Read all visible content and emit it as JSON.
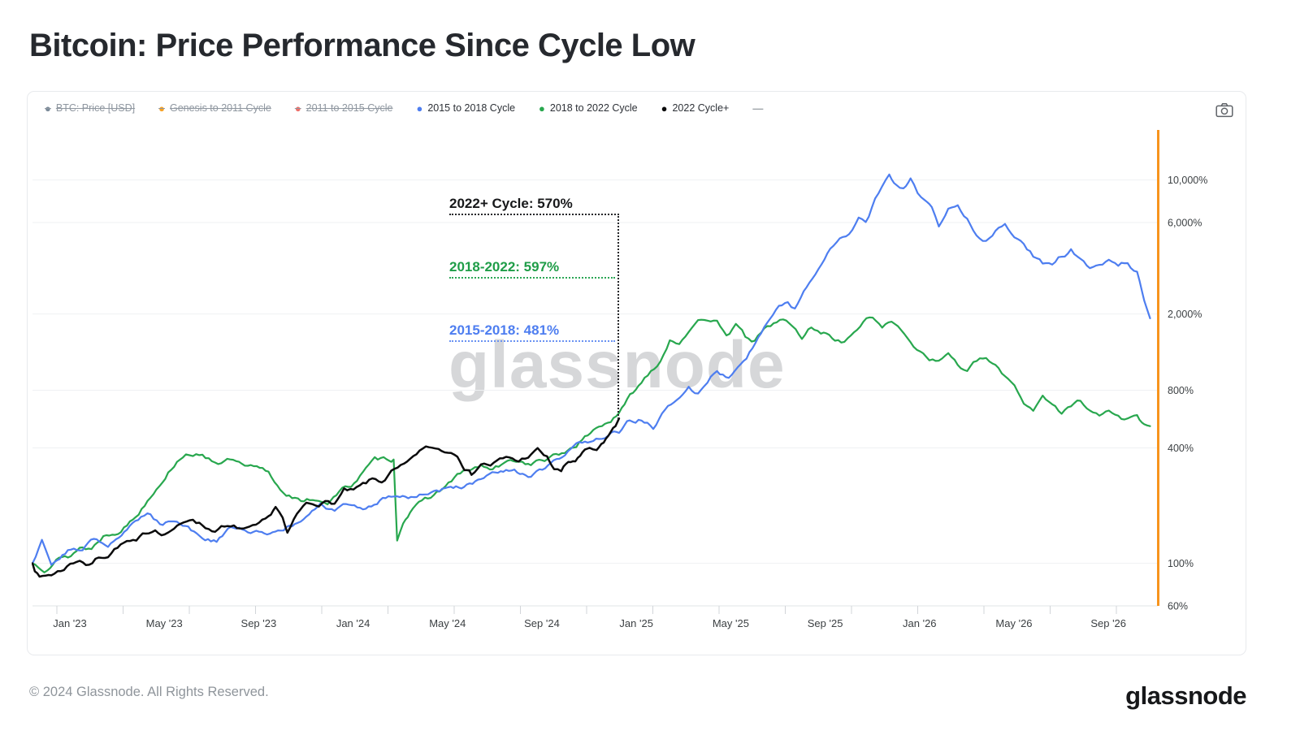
{
  "page": {
    "title": "Bitcoin: Price Performance Since Cycle Low"
  },
  "toolbar": {
    "camera_icon": "camera"
  },
  "legend": {
    "items": [
      {
        "label": "BTC: Price [USD]",
        "color": "#7b8b9a",
        "disabled": true
      },
      {
        "label": "Genesis to 2011 Cycle",
        "color": "#f7a225",
        "disabled": true
      },
      {
        "label": "2011 to 2015 Cycle",
        "color": "#ee6f6a",
        "disabled": true
      },
      {
        "label": "2015 to 2018 Cycle",
        "color": "#4e7ef0",
        "disabled": false
      },
      {
        "label": "2018 to 2022 Cycle",
        "color": "#28a74e",
        "disabled": false
      },
      {
        "label": "2022 Cycle+",
        "color": "#0b0b0c",
        "disabled": false
      },
      {
        "label": "—",
        "color": "#9aa0a6",
        "disabled": false,
        "dash": true
      }
    ]
  },
  "annotations": [
    {
      "label": "2022+ Cycle: 570%",
      "color": "#17181a",
      "value_pct": 570
    },
    {
      "label": "2018-2022: 597%",
      "color": "#1f9d48",
      "value_pct": 597
    },
    {
      "label": "2015-2018: 481%",
      "color": "#4e7ef0",
      "value_pct": 481
    }
  ],
  "watermark": "glassnode",
  "footer": {
    "copyright": "© 2024 Glassnode. All Rights Reserved.",
    "brand": "glassnode"
  },
  "chart_data": {
    "type": "line",
    "title": "Bitcoin: Price Performance Since Cycle Low",
    "x_axis": {
      "unit": "months since cycle low (calendar dates shown for 2022+ cycle)",
      "tick_labels": [
        "Jan '23",
        "May '23",
        "Sep '23",
        "Jan '24",
        "May '24",
        "Sep '24",
        "Jan '25",
        "May '25",
        "Sep '25",
        "Jan '26",
        "May '26",
        "Sep '26"
      ],
      "first_tick_month": 1.583,
      "tick_step_months": 4,
      "range_months": [
        0,
        47.5
      ]
    },
    "y_axis": {
      "scale": "log",
      "unit": "% price performance since cycle low",
      "side": "right",
      "tick_labels": [
        "10,000%",
        "6,000%",
        "2,000%",
        "800%",
        "400%",
        "100%",
        "60%"
      ],
      "tick_values": [
        10000,
        6000,
        2000,
        800,
        400,
        100,
        60
      ],
      "range": [
        55,
        13000
      ],
      "axis_line_color": "#f7941d"
    },
    "grid": "horizontal",
    "legend_position": "top-left",
    "marker_month_since_low": 24.85,
    "disabled_series": [
      "BTC: Price [USD]",
      "Genesis to 2011 Cycle",
      "2011 to 2015 Cycle"
    ],
    "series": [
      {
        "name": "2018 to 2022 Cycle",
        "color": "#28a74e",
        "width": 2.2,
        "seed": 13,
        "current_value_pct": 597,
        "points": [
          [
            0,
            100
          ],
          [
            0.5,
            95
          ],
          [
            1,
            110
          ],
          [
            1.5,
            108
          ],
          [
            2,
            122
          ],
          [
            2.5,
            120
          ],
          [
            3,
            140
          ],
          [
            3.5,
            148
          ],
          [
            4,
            162
          ],
          [
            4.5,
            185
          ],
          [
            5,
            230
          ],
          [
            5.5,
            280
          ],
          [
            6,
            335
          ],
          [
            6.5,
            390
          ],
          [
            6.8,
            360
          ],
          [
            7.2,
            372
          ],
          [
            7.6,
            350
          ],
          [
            8,
            342
          ],
          [
            8.5,
            346
          ],
          [
            9,
            312
          ],
          [
            9.5,
            306
          ],
          [
            10,
            292
          ],
          [
            10.5,
            242
          ],
          [
            11,
            226
          ],
          [
            11.5,
            206
          ],
          [
            12,
            216
          ],
          [
            12.5,
            210
          ],
          [
            13,
            236
          ],
          [
            13.5,
            256
          ],
          [
            14,
            300
          ],
          [
            14.5,
            340
          ],
          [
            15,
            346
          ],
          [
            15.3,
            352
          ],
          [
            15.45,
            135
          ],
          [
            15.7,
            168
          ],
          [
            16,
            192
          ],
          [
            16.5,
            206
          ],
          [
            17,
            226
          ],
          [
            17.5,
            252
          ],
          [
            18,
            286
          ],
          [
            18.5,
            302
          ],
          [
            19,
            318
          ],
          [
            19.5,
            306
          ],
          [
            20,
            326
          ],
          [
            20.5,
            342
          ],
          [
            21,
            330
          ],
          [
            21.7,
            346
          ],
          [
            22.3,
            362
          ],
          [
            22.8,
            396
          ],
          [
            23.4,
            452
          ],
          [
            24,
            522
          ],
          [
            24.5,
            562
          ],
          [
            24.85,
            597
          ],
          [
            25.2,
            700
          ],
          [
            25.8,
            880
          ],
          [
            26.2,
            1020
          ],
          [
            26.6,
            1160
          ],
          [
            27,
            1500
          ],
          [
            27.4,
            1440
          ],
          [
            27.8,
            1700
          ],
          [
            28.2,
            1820
          ],
          [
            28.6,
            1740
          ],
          [
            29,
            1860
          ],
          [
            29.4,
            1600
          ],
          [
            29.8,
            1760
          ],
          [
            30.2,
            1500
          ],
          [
            30.6,
            1440
          ],
          [
            31,
            1620
          ],
          [
            31.4,
            1760
          ],
          [
            31.8,
            1880
          ],
          [
            32.2,
            1700
          ],
          [
            32.6,
            1480
          ],
          [
            33,
            1700
          ],
          [
            33.4,
            1620
          ],
          [
            34,
            1500
          ],
          [
            34.4,
            1420
          ],
          [
            34.8,
            1620
          ],
          [
            35.2,
            1820
          ],
          [
            35.6,
            1920
          ],
          [
            36,
            1760
          ],
          [
            36.4,
            1820
          ],
          [
            36.8,
            1620
          ],
          [
            37.2,
            1460
          ],
          [
            37.6,
            1300
          ],
          [
            38,
            1210
          ],
          [
            38.4,
            1140
          ],
          [
            38.8,
            1260
          ],
          [
            39.2,
            1100
          ],
          [
            39.6,
            1000
          ],
          [
            40,
            1120
          ],
          [
            40.4,
            1160
          ],
          [
            40.8,
            1040
          ],
          [
            41.2,
            940
          ],
          [
            41.6,
            850
          ],
          [
            42,
            700
          ],
          [
            42.4,
            640
          ],
          [
            42.8,
            760
          ],
          [
            43.2,
            700
          ],
          [
            43.6,
            600
          ],
          [
            44,
            660
          ],
          [
            44.4,
            710
          ],
          [
            44.8,
            650
          ],
          [
            45.2,
            590
          ],
          [
            45.6,
            630
          ],
          [
            46,
            580
          ],
          [
            46.4,
            560
          ],
          [
            46.8,
            610
          ],
          [
            47.1,
            540
          ],
          [
            47.35,
            520
          ]
        ]
      },
      {
        "name": "2015 to 2018 Cycle",
        "color": "#4e7ef0",
        "width": 2.2,
        "seed": 29,
        "current_value_pct": 481,
        "points": [
          [
            0,
            100
          ],
          [
            0.4,
            138
          ],
          [
            0.8,
            102
          ],
          [
            1.5,
            122
          ],
          [
            2,
            115
          ],
          [
            2.6,
            132
          ],
          [
            3.2,
            128
          ],
          [
            4,
            155
          ],
          [
            4.6,
            172
          ],
          [
            5,
            180
          ],
          [
            5.4,
            162
          ],
          [
            6,
            172
          ],
          [
            6.6,
            158
          ],
          [
            7.2,
            136
          ],
          [
            7.8,
            130
          ],
          [
            8.4,
            152
          ],
          [
            9,
            148
          ],
          [
            9.6,
            143
          ],
          [
            10.4,
            150
          ],
          [
            11,
            158
          ],
          [
            11.6,
            172
          ],
          [
            12.2,
            196
          ],
          [
            12.8,
            188
          ],
          [
            13.4,
            200
          ],
          [
            14,
            194
          ],
          [
            14.6,
            208
          ],
          [
            15.2,
            228
          ],
          [
            15.8,
            222
          ],
          [
            16.4,
            230
          ],
          [
            17,
            240
          ],
          [
            17.6,
            246
          ],
          [
            18.4,
            256
          ],
          [
            19,
            268
          ],
          [
            19.6,
            290
          ],
          [
            20.3,
            296
          ],
          [
            21,
            286
          ],
          [
            21.6,
            302
          ],
          [
            22.2,
            336
          ],
          [
            22.8,
            380
          ],
          [
            23.4,
            430
          ],
          [
            24,
            452
          ],
          [
            24.4,
            468
          ],
          [
            24.85,
            481
          ],
          [
            25.3,
            545
          ],
          [
            25.8,
            565
          ],
          [
            26.3,
            515
          ],
          [
            26.8,
            625
          ],
          [
            27.3,
            700
          ],
          [
            27.8,
            810
          ],
          [
            28.2,
            760
          ],
          [
            28.6,
            890
          ],
          [
            29,
            1010
          ],
          [
            29.5,
            950
          ],
          [
            30,
            1160
          ],
          [
            30.5,
            1360
          ],
          [
            31,
            1700
          ],
          [
            31.5,
            2100
          ],
          [
            32,
            2400
          ],
          [
            32.3,
            2200
          ],
          [
            32.8,
            2750
          ],
          [
            33.3,
            3300
          ],
          [
            33.8,
            4200
          ],
          [
            34.2,
            4800
          ],
          [
            34.6,
            5300
          ],
          [
            35,
            6300
          ],
          [
            35.3,
            5800
          ],
          [
            35.7,
            7700
          ],
          [
            36,
            9200
          ],
          [
            36.3,
            10800
          ],
          [
            36.6,
            9600
          ],
          [
            36.9,
            9000
          ],
          [
            37.2,
            10000
          ],
          [
            37.5,
            8600
          ],
          [
            37.8,
            7800
          ],
          [
            38.1,
            7100
          ],
          [
            38.4,
            5800
          ],
          [
            38.8,
            7000
          ],
          [
            39.2,
            7400
          ],
          [
            39.6,
            6400
          ],
          [
            40,
            5400
          ],
          [
            40.4,
            5000
          ],
          [
            40.8,
            5600
          ],
          [
            41.2,
            6050
          ],
          [
            41.6,
            5300
          ],
          [
            42,
            4600
          ],
          [
            42.4,
            4000
          ],
          [
            42.8,
            3650
          ],
          [
            43.2,
            3450
          ],
          [
            43.6,
            3900
          ],
          [
            44,
            4250
          ],
          [
            44.4,
            3800
          ],
          [
            44.8,
            3400
          ],
          [
            45.2,
            3550
          ],
          [
            45.6,
            3700
          ],
          [
            46,
            3600
          ],
          [
            46.4,
            3700
          ],
          [
            46.8,
            3300
          ],
          [
            47.1,
            2250
          ],
          [
            47.35,
            1900
          ]
        ]
      },
      {
        "name": "2022 Cycle+",
        "color": "#0b0b0c",
        "width": 2.5,
        "seed": 7,
        "current_value_pct": 570,
        "points": [
          [
            0,
            100
          ],
          [
            0.3,
            85
          ],
          [
            0.8,
            88
          ],
          [
            1.2,
            92
          ],
          [
            1.6,
            100
          ],
          [
            2,
            106
          ],
          [
            2.4,
            98
          ],
          [
            2.8,
            108
          ],
          [
            3.2,
            112
          ],
          [
            3.6,
            124
          ],
          [
            4,
            130
          ],
          [
            4.4,
            127
          ],
          [
            4.8,
            140
          ],
          [
            5.2,
            150
          ],
          [
            5.6,
            145
          ],
          [
            6,
            155
          ],
          [
            6.4,
            160
          ],
          [
            6.8,
            172
          ],
          [
            7.2,
            160
          ],
          [
            7.6,
            150
          ],
          [
            8,
            156
          ],
          [
            8.4,
            152
          ],
          [
            8.8,
            150
          ],
          [
            9.2,
            148
          ],
          [
            9.6,
            153
          ],
          [
            10,
            165
          ],
          [
            10.3,
            195
          ],
          [
            10.6,
            170
          ],
          [
            10.8,
            138
          ],
          [
            11.2,
            175
          ],
          [
            11.6,
            200
          ],
          [
            12,
            205
          ],
          [
            12.4,
            210
          ],
          [
            12.8,
            206
          ],
          [
            13.2,
            238
          ],
          [
            13.6,
            234
          ],
          [
            14,
            250
          ],
          [
            14.4,
            268
          ],
          [
            14.8,
            264
          ],
          [
            15.2,
            298
          ],
          [
            15.6,
            310
          ],
          [
            16,
            330
          ],
          [
            16.4,
            378
          ],
          [
            16.8,
            395
          ],
          [
            17.2,
            390
          ],
          [
            17.6,
            384
          ],
          [
            18,
            378
          ],
          [
            18.3,
            330
          ],
          [
            18.6,
            298
          ],
          [
            19,
            338
          ],
          [
            19.4,
            330
          ],
          [
            19.8,
            345
          ],
          [
            20.2,
            350
          ],
          [
            20.6,
            338
          ],
          [
            21,
            362
          ],
          [
            21.4,
            388
          ],
          [
            21.8,
            352
          ],
          [
            22.1,
            310
          ],
          [
            22.4,
            300
          ],
          [
            22.7,
            332
          ],
          [
            23,
            342
          ],
          [
            23.3,
            366
          ],
          [
            23.6,
            390
          ],
          [
            23.9,
            372
          ],
          [
            24.2,
            420
          ],
          [
            24.5,
            478
          ],
          [
            24.7,
            510
          ],
          [
            24.85,
            570
          ]
        ]
      }
    ]
  }
}
